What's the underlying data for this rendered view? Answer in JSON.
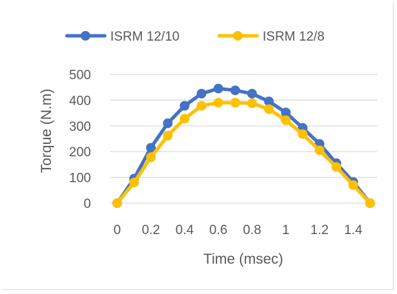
{
  "chart_data": {
    "type": "line",
    "title": "",
    "xlabel": "Time (msec)",
    "ylabel": "Torque (N.m)",
    "xlim": [
      0,
      1.5
    ],
    "ylim": [
      0,
      500
    ],
    "grid": true,
    "legend_position": "top",
    "x_ticks": [
      "0",
      "0.2",
      "0.4",
      "0.6",
      "0.8",
      "1",
      "1.2",
      "1.4"
    ],
    "y_ticks": [
      "0",
      "100",
      "200",
      "300",
      "400",
      "500"
    ],
    "x": [
      0,
      0.1,
      0.2,
      0.3,
      0.4,
      0.5,
      0.6,
      0.7,
      0.8,
      0.9,
      1.0,
      1.1,
      1.2,
      1.3,
      1.4,
      1.5
    ],
    "series": [
      {
        "name": "ISRM 12/10",
        "color": "#4472c4",
        "values": [
          0,
          95,
          215,
          310,
          378,
          425,
          445,
          438,
          425,
          395,
          352,
          292,
          230,
          155,
          82,
          0
        ]
      },
      {
        "name": "ISRM 12/8",
        "color": "#ffc000",
        "values": [
          0,
          80,
          178,
          262,
          328,
          378,
          390,
          390,
          388,
          365,
          322,
          268,
          205,
          140,
          70,
          0
        ]
      }
    ]
  }
}
